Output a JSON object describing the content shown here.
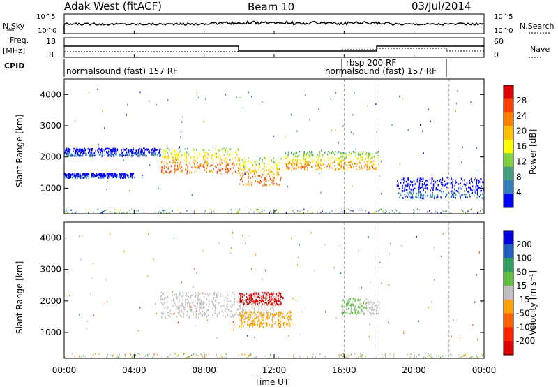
{
  "header": {
    "radar": "Adak West (fitACF)",
    "beam": "Beam 10",
    "date": "03/Jul/2014"
  },
  "strip": {
    "nsky_label": "N.Sky",
    "nsky_ticks": [
      "10^5",
      "10^0"
    ],
    "nsearch_label": "N.Search",
    "nsearch_ticks": [
      "10^5",
      "10^0"
    ],
    "freq_label": "Freq.",
    "freq_unit": "[MHz]",
    "freq_ticks": [
      "18",
      "8"
    ],
    "nave_label": "Nave",
    "nave_ticks": [
      "60",
      "0"
    ],
    "cpid_label": "CPID"
  },
  "cpid_segments": [
    {
      "label": "normalsound (fast) 157 RF"
    },
    {
      "label": "rbsp 200 RF"
    },
    {
      "label": "normalsound (fast) 157 RF"
    }
  ],
  "axes": {
    "ylabel": "Slant Range [km]",
    "xlabel": "Time UT",
    "yticks": [
      "1000",
      "2000",
      "3000",
      "4000"
    ],
    "xticks": [
      "00:00",
      "04:00",
      "08:00",
      "12:00",
      "16:00",
      "20:00",
      "00:00"
    ]
  },
  "colorbars": {
    "power": {
      "label": "Power [dB]",
      "ticks": [
        "28",
        "24",
        "20",
        "16",
        "12",
        "8",
        "4"
      ],
      "colors": [
        "#e00000",
        "#ff4000",
        "#ff8000",
        "#ffc000",
        "#ffff00",
        "#80d040",
        "#40a080",
        "#3080c0",
        "#0000ff"
      ]
    },
    "velocity": {
      "label": "Velocity [m s⁻¹]",
      "ticks": [
        "200",
        "100",
        "50",
        "15",
        "-15",
        "-50",
        "-100",
        "-200"
      ],
      "colors": [
        "#0000e0",
        "#2060c0",
        "#30a060",
        "#60c040",
        "#c0c0c0",
        "#ffa000",
        "#ff6000",
        "#ff2000",
        "#e00000"
      ]
    }
  },
  "chart_data": [
    {
      "type": "heatmap",
      "title": "Power",
      "xlabel": "Time UT",
      "ylabel": "Slant Range [km]",
      "ylim": [
        180,
        4500
      ],
      "xlim": [
        0,
        24
      ],
      "colorbar_label": "Power [dB]",
      "colorbar_range": [
        0,
        30
      ],
      "bands": [
        {
          "t_start": 0.0,
          "t_end": 5.5,
          "range_low": 2050,
          "range_high": 2300,
          "power": 6
        },
        {
          "t_start": 0.0,
          "t_end": 4.0,
          "range_low": 1350,
          "range_high": 1500,
          "power": 5
        },
        {
          "t_start": 5.5,
          "t_end": 10.0,
          "range_low": 1500,
          "range_high": 2300,
          "power": 24
        },
        {
          "t_start": 10.0,
          "t_end": 12.5,
          "range_low": 1100,
          "range_high": 2000,
          "power": 24
        },
        {
          "t_start": 12.5,
          "t_end": 18.0,
          "range_low": 1600,
          "range_high": 2200,
          "power": 22
        },
        {
          "t_start": 19.0,
          "t_end": 24.0,
          "range_low": 700,
          "range_high": 1350,
          "power": 6
        }
      ]
    },
    {
      "type": "heatmap",
      "title": "Velocity",
      "xlabel": "Time UT",
      "ylabel": "Slant Range [km]",
      "ylim": [
        180,
        4500
      ],
      "xlim": [
        0,
        24
      ],
      "colorbar_label": "Velocity [m s⁻¹]",
      "colorbar_range": [
        -250,
        250
      ],
      "bands": [
        {
          "t_start": 5.5,
          "t_end": 12.0,
          "range_low": 1500,
          "range_high": 2300,
          "velocity": 0
        },
        {
          "t_start": 10.0,
          "t_end": 12.5,
          "range_low": 1900,
          "range_high": 2300,
          "velocity": -220
        },
        {
          "t_start": 10.0,
          "t_end": 13.0,
          "range_low": 1200,
          "range_high": 1700,
          "velocity": -40
        },
        {
          "t_start": 15.8,
          "t_end": 17.3,
          "range_low": 1600,
          "range_high": 2100,
          "velocity": 30
        },
        {
          "t_start": 17.3,
          "t_end": 18.0,
          "range_low": 1600,
          "range_high": 2000,
          "velocity": 0
        }
      ]
    }
  ]
}
